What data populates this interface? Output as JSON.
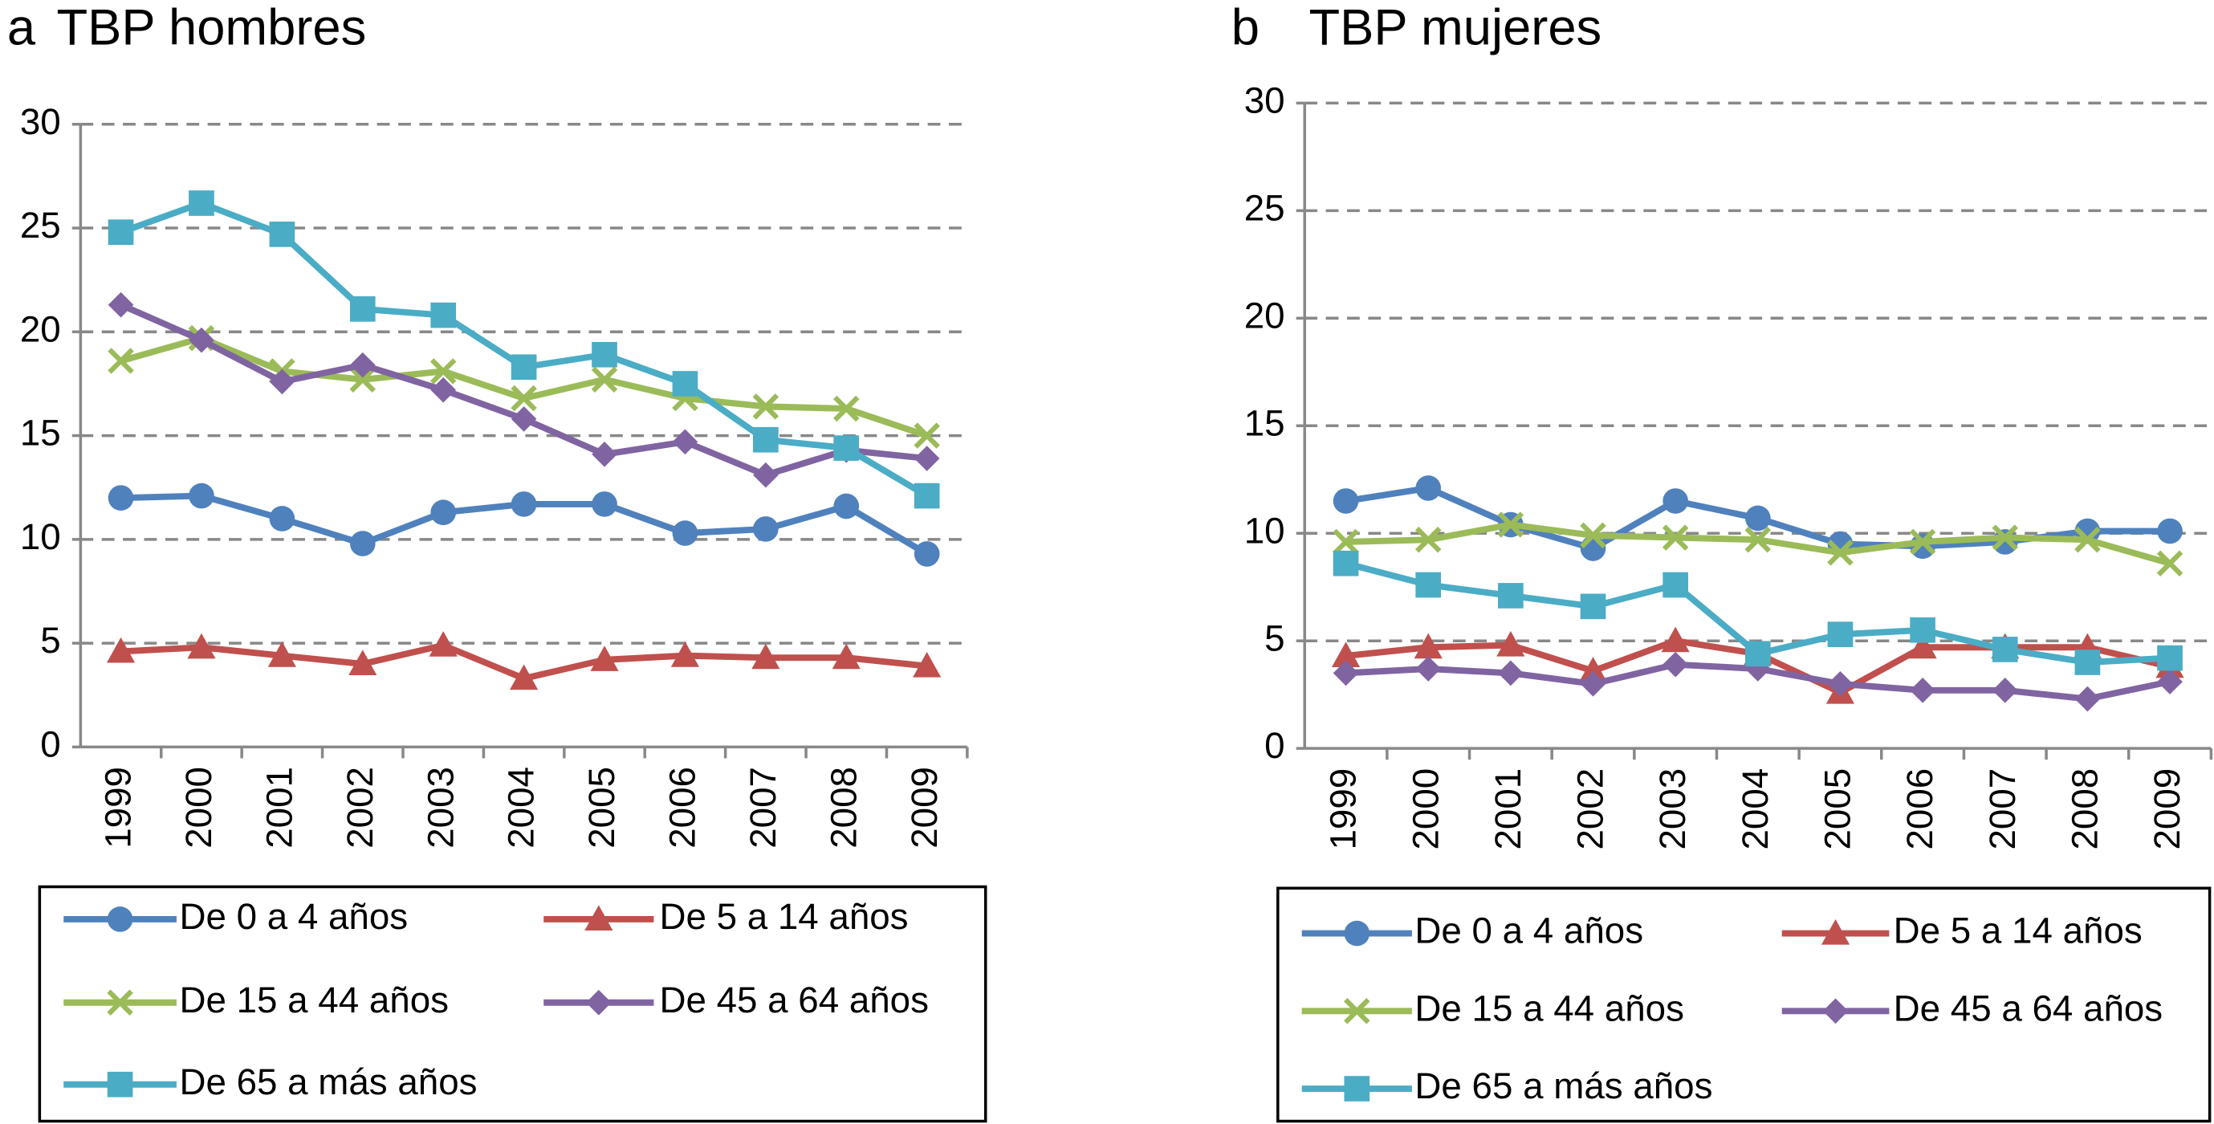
{
  "chart_data": [
    {
      "type": "line",
      "panel_label": "a",
      "title": "TBP hombres",
      "categories": [
        "1999",
        "2000",
        "2001",
        "2002",
        "2003",
        "2004",
        "2005",
        "2006",
        "2007",
        "2008",
        "2009"
      ],
      "ylim": [
        0,
        30
      ],
      "yticks": [
        0,
        5,
        10,
        15,
        20,
        25,
        30
      ],
      "grid": true,
      "series": [
        {
          "name": "De 0 a 4 años",
          "color": "#4f81bd",
          "marker": "circle",
          "values": [
            12.0,
            12.1,
            11.0,
            9.8,
            11.3,
            11.7,
            11.7,
            10.3,
            10.5,
            11.6,
            9.3
          ]
        },
        {
          "name": "De 5 a 14 años",
          "color": "#c0504d",
          "marker": "triangle",
          "values": [
            4.6,
            4.8,
            4.4,
            4.0,
            4.9,
            3.3,
            4.2,
            4.4,
            4.3,
            4.3,
            3.9
          ]
        },
        {
          "name": "De 15 a 44 años",
          "color": "#9bbb59",
          "marker": "x",
          "values": [
            18.6,
            19.7,
            18.1,
            17.7,
            18.1,
            16.8,
            17.7,
            16.8,
            16.4,
            16.3,
            15.0
          ]
        },
        {
          "name": "De 45 a 64 años",
          "color": "#8064a2",
          "marker": "diamond",
          "values": [
            21.3,
            19.6,
            17.6,
            18.4,
            17.2,
            15.8,
            14.1,
            14.7,
            13.1,
            14.3,
            13.9
          ]
        },
        {
          "name": "De 65 a más años",
          "color": "#4bacc6",
          "marker": "square",
          "values": [
            24.8,
            26.2,
            24.7,
            21.1,
            20.8,
            18.3,
            18.9,
            17.5,
            14.8,
            14.4,
            12.1
          ]
        }
      ]
    },
    {
      "type": "line",
      "panel_label": "b",
      "title": "TBP mujeres",
      "categories": [
        "1999",
        "2000",
        "2001",
        "2002",
        "2003",
        "2004",
        "2005",
        "2006",
        "2007",
        "2008",
        "2009"
      ],
      "ylim": [
        0,
        30
      ],
      "yticks": [
        0,
        5,
        10,
        15,
        20,
        25,
        30
      ],
      "grid": true,
      "series": [
        {
          "name": "De 0 a 4 años",
          "color": "#4f81bd",
          "marker": "circle",
          "values": [
            11.5,
            12.1,
            10.4,
            9.3,
            11.5,
            10.7,
            9.5,
            9.4,
            9.6,
            10.1,
            10.1
          ]
        },
        {
          "name": "De 5 a 14 años",
          "color": "#c0504d",
          "marker": "triangle",
          "values": [
            4.3,
            4.7,
            4.8,
            3.6,
            5.0,
            4.4,
            2.6,
            4.7,
            4.7,
            4.7,
            3.8
          ]
        },
        {
          "name": "De 15 a 44 años",
          "color": "#9bbb59",
          "marker": "x",
          "values": [
            9.6,
            9.7,
            10.4,
            9.9,
            9.8,
            9.7,
            9.1,
            9.6,
            9.8,
            9.7,
            8.6
          ]
        },
        {
          "name": "De 45 a 64 años",
          "color": "#8064a2",
          "marker": "diamond",
          "values": [
            3.5,
            3.7,
            3.5,
            3.0,
            3.9,
            3.7,
            3.0,
            2.7,
            2.7,
            2.3,
            3.1
          ]
        },
        {
          "name": "De 65 a más años",
          "color": "#4bacc6",
          "marker": "square",
          "values": [
            8.6,
            7.6,
            7.1,
            6.6,
            7.6,
            4.4,
            5.3,
            5.5,
            4.6,
            4.0,
            4.2
          ]
        }
      ]
    }
  ]
}
